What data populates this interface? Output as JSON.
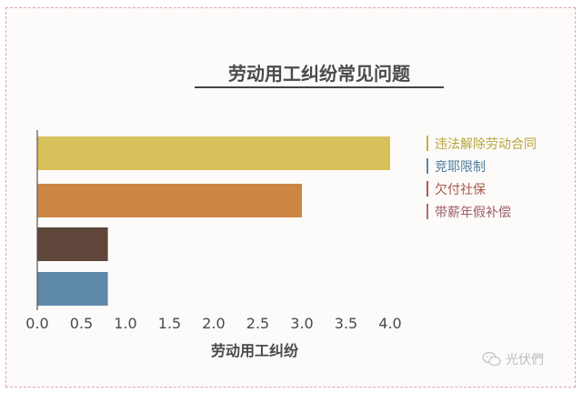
{
  "chart_data": {
    "type": "bar",
    "orientation": "horizontal",
    "title": "劳动用工纠纷常见问题",
    "xlabel": "劳动用工纠纷",
    "ylabel": "",
    "xlim": [
      0,
      4
    ],
    "x_ticks": [
      "0.0",
      "0.5",
      "1.0",
      "1.5",
      "2.0",
      "2.5",
      "3.0",
      "3.5",
      "4.0"
    ],
    "grid": false,
    "legend_position": "right",
    "categories": [
      "违法解除劳动合同",
      "竞耶限制",
      "欠付社保",
      "带薪年假补偿"
    ],
    "values": [
      4.0,
      3.0,
      0.8,
      0.8
    ],
    "colors": [
      "#d8c05a",
      "#cd8544",
      "#5e473a",
      "#5f89a8"
    ],
    "legend_colors": [
      "#c7b345",
      "#5a87a5",
      "#a95a4b",
      "#b06a7a"
    ],
    "legend_text_colors": [
      "#b6a63c",
      "#4f7ea0",
      "#a5574a",
      "#9f5a6a"
    ]
  },
  "watermark": {
    "text": "光伏們",
    "icon": "wechat-icon"
  }
}
